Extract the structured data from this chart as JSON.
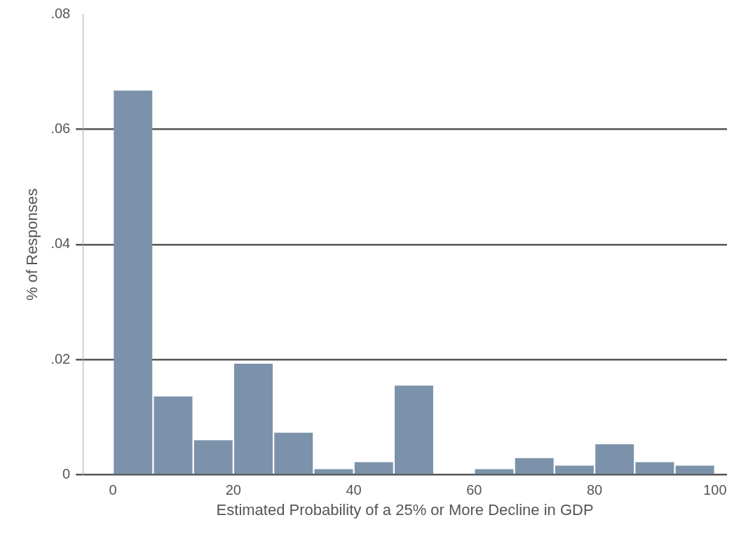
{
  "chart_data": {
    "type": "histogram",
    "xlabel": "Estimated Probability of a 25% or More Decline in GDP",
    "ylabel": "% of Responses",
    "bins": [
      0,
      6.667,
      13.333,
      20,
      26.667,
      33.333,
      40,
      46.667,
      53.333,
      60,
      66.667,
      73.333,
      80,
      86.667,
      93.333,
      100
    ],
    "values": [
      0.0667,
      0.0136,
      0.006,
      0.0193,
      0.0073,
      0.001,
      0.0022,
      0.0155,
      0,
      0.001,
      0.0029,
      0.0016,
      0.0053,
      0.0022,
      0.0016
    ],
    "color": "#7b92aa",
    "xlim": [
      -5,
      102
    ],
    "xticks": [
      0,
      20,
      40,
      60,
      80,
      100
    ],
    "ylim": [
      0,
      0.08
    ],
    "yticks": [
      0,
      {
        "value": 0.02,
        "label": ".02"
      },
      {
        "value": 0.04,
        "label": ".04"
      },
      {
        "value": 0.06,
        "label": ".06"
      },
      {
        "value": 0.08,
        "label": ".08"
      }
    ],
    "grid": "y"
  }
}
